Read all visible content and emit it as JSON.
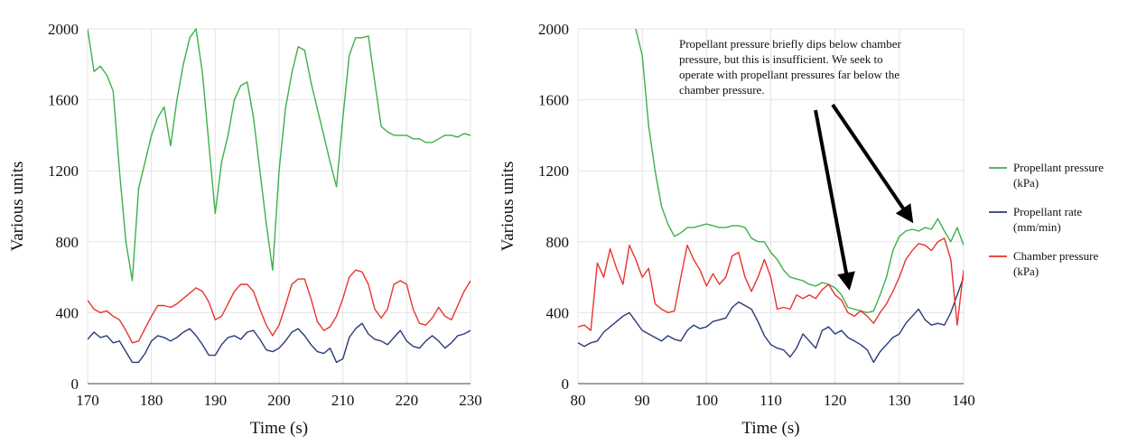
{
  "colors": {
    "propellant_pressure": "#3cb04a",
    "propellant_rate": "#2b3a7a",
    "chamber_pressure": "#e8342d",
    "grid": "#e4e4e4",
    "arrow": "#000000"
  },
  "legend": {
    "placement": "right",
    "items": [
      {
        "key": "propellant_pressure",
        "lines": [
          "Propellant pressure",
          "(kPa)"
        ]
      },
      {
        "key": "propellant_rate",
        "lines": [
          "Propellant rate",
          "(mm/min)"
        ]
      },
      {
        "key": "chamber_pressure",
        "lines": [
          "Chamber pressure",
          "(kPa)"
        ]
      }
    ]
  },
  "chart_data": [
    {
      "type": "line",
      "xlabel": "Time (s)",
      "ylabel": "Various units",
      "xlim": [
        170,
        230
      ],
      "ylim": [
        0,
        2000
      ],
      "xticks": [
        "170",
        "180",
        "190",
        "200",
        "210",
        "220",
        "230"
      ],
      "yticks": [
        "0",
        "400",
        "800",
        "1200",
        "1600",
        "2000"
      ],
      "grid": true,
      "series": [
        {
          "key": "propellant_pressure",
          "name": "Propellant pressure (kPa)",
          "x": [
            170,
            171,
            172,
            173,
            174,
            175,
            176,
            177,
            178,
            179,
            180,
            181,
            182,
            183,
            184,
            185,
            186,
            187,
            188,
            189,
            190,
            191,
            192,
            193,
            194,
            195,
            196,
            197,
            198,
            199,
            200,
            201,
            202,
            203,
            204,
            205,
            206,
            207,
            208,
            209,
            210,
            211,
            212,
            213,
            214,
            215,
            216,
            217,
            218,
            219,
            220,
            221,
            222,
            223,
            224,
            225,
            226,
            227,
            228,
            229,
            230
          ],
          "y": [
            2000,
            1760,
            1790,
            1740,
            1650,
            1200,
            800,
            580,
            1100,
            1250,
            1400,
            1500,
            1560,
            1340,
            1600,
            1800,
            1950,
            2000,
            1750,
            1350,
            960,
            1250,
            1400,
            1600,
            1680,
            1700,
            1500,
            1200,
            900,
            640,
            1200,
            1550,
            1750,
            1900,
            1880,
            1700,
            1550,
            1400,
            1250,
            1110,
            1500,
            1850,
            1950,
            1950,
            1960,
            1700,
            1450,
            1420,
            1400,
            1400,
            1400,
            1380,
            1380,
            1360,
            1360,
            1380,
            1400,
            1400,
            1390,
            1410,
            1400
          ]
        },
        {
          "key": "propellant_rate",
          "name": "Propellant rate (mm/min)",
          "x": [
            170,
            171,
            172,
            173,
            174,
            175,
            176,
            177,
            178,
            179,
            180,
            181,
            182,
            183,
            184,
            185,
            186,
            187,
            188,
            189,
            190,
            191,
            192,
            193,
            194,
            195,
            196,
            197,
            198,
            199,
            200,
            201,
            202,
            203,
            204,
            205,
            206,
            207,
            208,
            209,
            210,
            211,
            212,
            213,
            214,
            215,
            216,
            217,
            218,
            219,
            220,
            221,
            222,
            223,
            224,
            225,
            226,
            227,
            228,
            229,
            230
          ],
          "y": [
            250,
            290,
            260,
            270,
            230,
            240,
            180,
            120,
            120,
            170,
            240,
            270,
            260,
            240,
            260,
            290,
            310,
            270,
            220,
            160,
            160,
            220,
            260,
            270,
            250,
            290,
            300,
            250,
            190,
            180,
            200,
            240,
            290,
            310,
            270,
            220,
            180,
            170,
            200,
            120,
            140,
            260,
            310,
            340,
            280,
            250,
            240,
            220,
            260,
            300,
            240,
            210,
            200,
            240,
            270,
            240,
            200,
            230,
            270,
            280,
            300
          ]
        },
        {
          "key": "chamber_pressure",
          "name": "Chamber pressure (kPa)",
          "x": [
            170,
            171,
            172,
            173,
            174,
            175,
            176,
            177,
            178,
            179,
            180,
            181,
            182,
            183,
            184,
            185,
            186,
            187,
            188,
            189,
            190,
            191,
            192,
            193,
            194,
            195,
            196,
            197,
            198,
            199,
            200,
            201,
            202,
            203,
            204,
            205,
            206,
            207,
            208,
            209,
            210,
            211,
            212,
            213,
            214,
            215,
            216,
            217,
            218,
            219,
            220,
            221,
            222,
            223,
            224,
            225,
            226,
            227,
            228,
            229,
            230
          ],
          "y": [
            470,
            420,
            400,
            410,
            380,
            360,
            300,
            230,
            240,
            310,
            380,
            440,
            440,
            430,
            450,
            480,
            510,
            540,
            520,
            460,
            360,
            380,
            450,
            520,
            560,
            560,
            520,
            420,
            330,
            270,
            330,
            440,
            560,
            590,
            590,
            480,
            350,
            300,
            320,
            380,
            480,
            600,
            640,
            630,
            560,
            420,
            370,
            420,
            560,
            580,
            560,
            420,
            340,
            330,
            370,
            430,
            380,
            360,
            440,
            520,
            580
          ]
        }
      ]
    },
    {
      "type": "line",
      "xlabel": "Time (s)",
      "ylabel": "Various units",
      "xlim": [
        80,
        140
      ],
      "ylim": [
        0,
        2000
      ],
      "xticks": [
        "80",
        "90",
        "100",
        "110",
        "120",
        "130",
        "140"
      ],
      "yticks": [
        "0",
        "400",
        "800",
        "1200",
        "1600",
        "2000"
      ],
      "grid": true,
      "series": [
        {
          "key": "propellant_pressure",
          "name": "Propellant pressure (kPa)",
          "x": [
            89,
            90,
            91,
            92,
            93,
            94,
            95,
            96,
            97,
            98,
            99,
            100,
            101,
            102,
            103,
            104,
            105,
            106,
            107,
            108,
            109,
            110,
            111,
            112,
            113,
            114,
            115,
            116,
            117,
            118,
            119,
            120,
            121,
            122,
            123,
            124,
            125,
            126,
            127,
            128,
            129,
            130,
            131,
            132,
            133,
            134,
            135,
            136,
            137,
            138,
            139,
            140
          ],
          "y": [
            2000,
            1850,
            1450,
            1200,
            1000,
            900,
            830,
            850,
            880,
            880,
            890,
            900,
            890,
            880,
            880,
            890,
            890,
            880,
            820,
            800,
            800,
            740,
            700,
            640,
            600,
            590,
            580,
            560,
            550,
            570,
            560,
            540,
            500,
            430,
            420,
            410,
            400,
            410,
            500,
            600,
            750,
            830,
            860,
            870,
            860,
            880,
            870,
            930,
            860,
            800,
            880,
            780
          ]
        },
        {
          "key": "propellant_rate",
          "name": "Propellant rate (mm/min)",
          "x": [
            80,
            81,
            82,
            83,
            84,
            85,
            86,
            87,
            88,
            89,
            90,
            91,
            92,
            93,
            94,
            95,
            96,
            97,
            98,
            99,
            100,
            101,
            102,
            103,
            104,
            105,
            106,
            107,
            108,
            109,
            110,
            111,
            112,
            113,
            114,
            115,
            116,
            117,
            118,
            119,
            120,
            121,
            122,
            123,
            124,
            125,
            126,
            127,
            128,
            129,
            130,
            131,
            132,
            133,
            134,
            135,
            136,
            137,
            138,
            139,
            140
          ],
          "y": [
            230,
            210,
            230,
            240,
            290,
            320,
            350,
            380,
            400,
            350,
            300,
            280,
            260,
            240,
            270,
            250,
            240,
            300,
            330,
            310,
            320,
            350,
            360,
            370,
            430,
            460,
            440,
            420,
            350,
            270,
            220,
            200,
            190,
            150,
            200,
            280,
            240,
            200,
            300,
            320,
            280,
            300,
            260,
            240,
            220,
            190,
            120,
            180,
            220,
            260,
            280,
            340,
            380,
            420,
            360,
            330,
            340,
            330,
            400,
            500,
            600
          ]
        },
        {
          "key": "chamber_pressure",
          "name": "Chamber pressure (kPa)",
          "x": [
            80,
            81,
            82,
            83,
            84,
            85,
            86,
            87,
            88,
            89,
            90,
            91,
            92,
            93,
            94,
            95,
            96,
            97,
            98,
            99,
            100,
            101,
            102,
            103,
            104,
            105,
            106,
            107,
            108,
            109,
            110,
            111,
            112,
            113,
            114,
            115,
            116,
            117,
            118,
            119,
            120,
            121,
            122,
            123,
            124,
            125,
            126,
            127,
            128,
            129,
            130,
            131,
            132,
            133,
            134,
            135,
            136,
            137,
            138,
            139,
            140
          ],
          "y": [
            320,
            330,
            300,
            680,
            600,
            760,
            650,
            560,
            780,
            700,
            600,
            650,
            450,
            420,
            400,
            410,
            600,
            780,
            700,
            640,
            550,
            620,
            560,
            600,
            720,
            740,
            600,
            520,
            600,
            700,
            600,
            420,
            430,
            420,
            500,
            480,
            500,
            480,
            530,
            560,
            500,
            470,
            400,
            380,
            410,
            380,
            340,
            400,
            450,
            520,
            600,
            700,
            750,
            790,
            780,
            750,
            800,
            820,
            700,
            330,
            640
          ]
        }
      ]
    }
  ],
  "annotation": {
    "lines": [
      "Propellant pressure briefly dips below chamber",
      "pressure, but this is insufficient. We seek to",
      "operate with propellant pressures far below the",
      "chamber pressure."
    ]
  }
}
